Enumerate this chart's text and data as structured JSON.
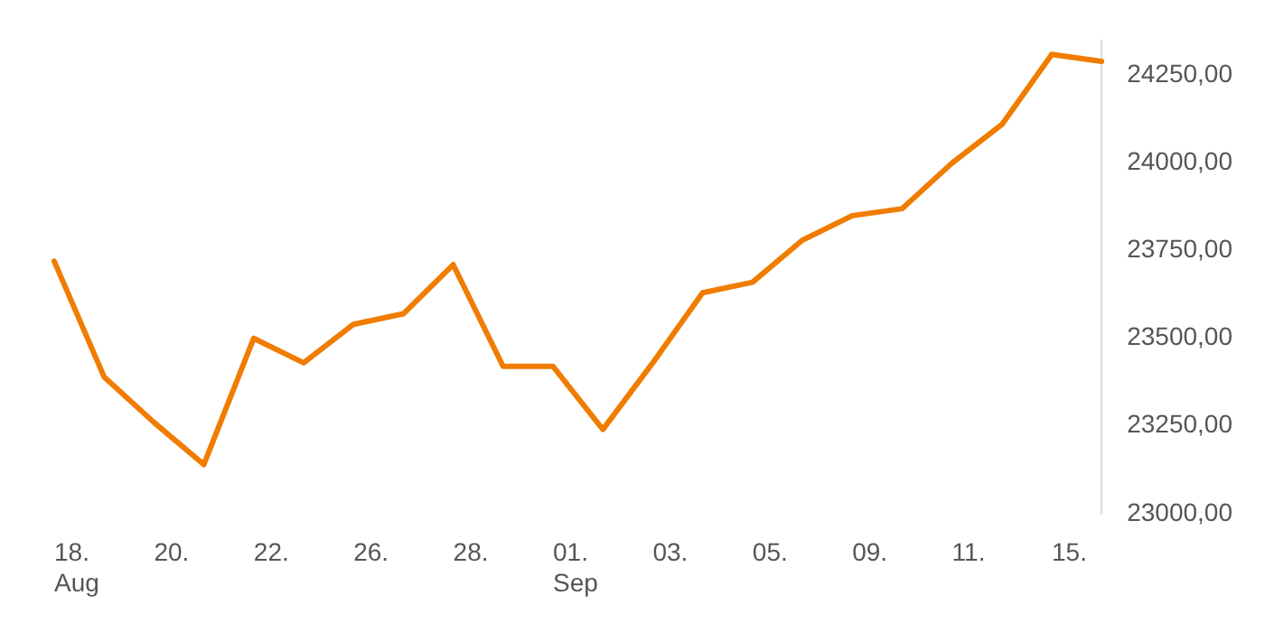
{
  "chart_data": {
    "type": "line",
    "categories": [
      "18. Aug",
      null,
      "20.",
      null,
      "22.",
      null,
      "26.",
      null,
      "28.",
      null,
      "01. Sep",
      null,
      "03.",
      null,
      "05.",
      null,
      "09.",
      null,
      "11.",
      null,
      "15.",
      null
    ],
    "series": [
      {
        "color": "#f07c00",
        "values": [
          23720,
          23390,
          23260,
          23140,
          23500,
          23430,
          23540,
          23570,
          23710,
          23420,
          23420,
          23240,
          23430,
          23630,
          23660,
          23780,
          23850,
          23870,
          24000,
          24110,
          24310,
          24290
        ]
      }
    ],
    "ylim": [
      23000,
      24350
    ],
    "yticks": [
      {
        "value": 23000,
        "label": "23000,00"
      },
      {
        "value": 23250,
        "label": "23250,00"
      },
      {
        "value": 23500,
        "label": "23500,00"
      },
      {
        "value": 23750,
        "label": "23750,00"
      },
      {
        "value": 24000,
        "label": "24000,00"
      },
      {
        "value": 24250,
        "label": "24250,00"
      }
    ],
    "grid": false,
    "legend": false,
    "marker": "none",
    "line_style": "solid"
  }
}
